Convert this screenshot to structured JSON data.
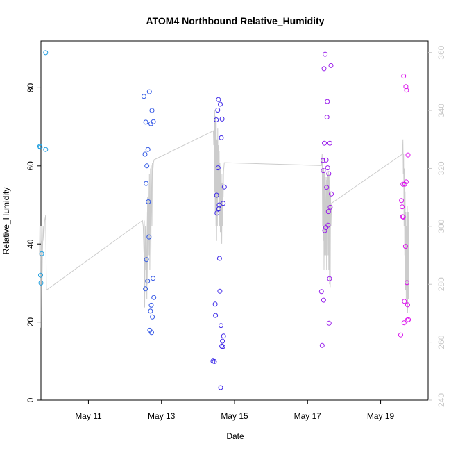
{
  "chart_data": {
    "type": "scatter",
    "title": "ATOM4 Northbound Relative_Humidity",
    "xlabel": "Date",
    "ylabel": "Relative_Humidity",
    "xlim": [
      9.7,
      20.3
    ],
    "ylim": [
      0,
      92
    ],
    "y2lim": [
      240,
      364
    ],
    "x_ticks": [
      {
        "value": 11,
        "label": "May 11"
      },
      {
        "value": 13,
        "label": "May 13"
      },
      {
        "value": 15,
        "label": "May 15"
      },
      {
        "value": 17,
        "label": "May 17"
      },
      {
        "value": 19,
        "label": "May 19"
      }
    ],
    "y_ticks": [
      0,
      20,
      40,
      60,
      80
    ],
    "y2_ticks": [
      240,
      260,
      280,
      300,
      320,
      340,
      360
    ],
    "colors": {
      "axis": "#000000",
      "secondary_axis": "#c8c8c8",
      "line": "#cccccc",
      "point_start": "#1fa0e0",
      "point_mid": "#3b2ae8",
      "point_end": "#ee10ee"
    },
    "series": [
      {
        "name": "Relative_Humidity",
        "kind": "points",
        "points": [
          [
            9.67,
            65.0
          ],
          [
            9.68,
            64.8
          ],
          [
            9.69,
            32.0
          ],
          [
            9.7,
            30.0
          ],
          [
            9.72,
            37.5
          ],
          [
            9.83,
            89.0
          ],
          [
            9.83,
            64.2
          ],
          [
            12.52,
            77.8
          ],
          [
            12.55,
            63.0
          ],
          [
            12.56,
            28.5
          ],
          [
            12.57,
            71.2
          ],
          [
            12.58,
            55.5
          ],
          [
            12.59,
            36.0
          ],
          [
            12.6,
            60.0
          ],
          [
            12.62,
            30.5
          ],
          [
            12.63,
            64.2
          ],
          [
            12.64,
            50.8
          ],
          [
            12.66,
            41.8
          ],
          [
            12.67,
            79.0
          ],
          [
            12.68,
            17.9
          ],
          [
            12.7,
            22.8
          ],
          [
            12.71,
            70.8
          ],
          [
            12.72,
            24.3
          ],
          [
            12.73,
            17.3
          ],
          [
            12.74,
            74.2
          ],
          [
            12.75,
            21.3
          ],
          [
            12.77,
            31.2
          ],
          [
            12.78,
            71.3
          ],
          [
            12.79,
            26.3
          ],
          [
            14.41,
            10.0
          ],
          [
            14.45,
            9.9
          ],
          [
            14.47,
            24.6
          ],
          [
            14.48,
            21.7
          ],
          [
            14.5,
            71.8
          ],
          [
            14.51,
            52.5
          ],
          [
            14.52,
            47.9
          ],
          [
            14.54,
            74.3
          ],
          [
            14.55,
            59.5
          ],
          [
            14.56,
            77.0
          ],
          [
            14.57,
            49.0
          ],
          [
            14.58,
            50.0
          ],
          [
            14.59,
            36.3
          ],
          [
            14.6,
            27.9
          ],
          [
            14.61,
            75.8
          ],
          [
            14.62,
            3.2
          ],
          [
            14.63,
            19.1
          ],
          [
            14.64,
            67.2
          ],
          [
            14.65,
            13.8
          ],
          [
            14.66,
            72.0
          ],
          [
            14.67,
            15.1
          ],
          [
            14.68,
            13.7
          ],
          [
            14.69,
            50.4
          ],
          [
            14.7,
            16.4
          ],
          [
            14.72,
            54.6
          ],
          [
            17.38,
            27.8
          ],
          [
            17.4,
            14.0
          ],
          [
            17.42,
            61.4
          ],
          [
            17.43,
            58.8
          ],
          [
            17.44,
            25.6
          ],
          [
            17.45,
            84.9
          ],
          [
            17.46,
            65.8
          ],
          [
            17.47,
            43.4
          ],
          [
            17.48,
            88.6
          ],
          [
            17.5,
            44.2
          ],
          [
            17.51,
            61.5
          ],
          [
            17.52,
            54.5
          ],
          [
            17.53,
            72.5
          ],
          [
            17.54,
            76.5
          ],
          [
            17.55,
            59.5
          ],
          [
            17.56,
            44.8
          ],
          [
            17.57,
            48.3
          ],
          [
            17.58,
            58.0
          ],
          [
            17.59,
            19.7
          ],
          [
            17.6,
            31.1
          ],
          [
            17.61,
            65.8
          ],
          [
            17.62,
            49.4
          ],
          [
            17.64,
            85.7
          ],
          [
            17.65,
            52.8
          ],
          [
            19.55,
            16.7
          ],
          [
            19.57,
            51.1
          ],
          [
            19.59,
            49.5
          ],
          [
            19.6,
            47.0
          ],
          [
            19.61,
            55.3
          ],
          [
            19.62,
            46.9
          ],
          [
            19.63,
            83.0
          ],
          [
            19.64,
            19.8
          ],
          [
            19.65,
            25.3
          ],
          [
            19.66,
            55.3
          ],
          [
            19.68,
            39.4
          ],
          [
            19.69,
            80.3
          ],
          [
            19.7,
            55.9
          ],
          [
            19.71,
            79.4
          ],
          [
            19.72,
            30.1
          ],
          [
            19.73,
            20.5
          ],
          [
            19.74,
            24.4
          ],
          [
            19.75,
            62.8
          ],
          [
            19.76,
            20.6
          ]
        ]
      },
      {
        "name": "secondary axis series",
        "kind": "line",
        "axis": "right",
        "points": [
          [
            9.66,
            290
          ],
          [
            9.67,
            300
          ],
          [
            9.68,
            285
          ],
          [
            9.69,
            265
          ],
          [
            9.7,
            300
          ],
          [
            9.71,
            290
          ],
          [
            9.72,
            295
          ],
          [
            9.73,
            280
          ],
          [
            9.74,
            290
          ],
          [
            9.76,
            300
          ],
          [
            9.78,
            295
          ],
          [
            9.8,
            302
          ],
          [
            9.82,
            303
          ],
          [
            9.83,
            304
          ],
          [
            9.85,
            278
          ],
          [
            12.48,
            302
          ],
          [
            12.5,
            300
          ],
          [
            12.52,
            291
          ],
          [
            12.53,
            302
          ],
          [
            12.54,
            272
          ],
          [
            12.55,
            290
          ],
          [
            12.56,
            300
          ],
          [
            12.57,
            285
          ],
          [
            12.58,
            305
          ],
          [
            12.6,
            275
          ],
          [
            12.61,
            295
          ],
          [
            12.62,
            310
          ],
          [
            12.63,
            280
          ],
          [
            12.64,
            315
          ],
          [
            12.66,
            290
          ],
          [
            12.67,
            318
          ],
          [
            12.68,
            285
          ],
          [
            12.7,
            320
          ],
          [
            12.71,
            290
          ],
          [
            12.72,
            321
          ],
          [
            12.74,
            300
          ],
          [
            12.75,
            322
          ],
          [
            12.77,
            320
          ],
          [
            12.78,
            322
          ],
          [
            12.8,
            323
          ],
          [
            14.42,
            333
          ],
          [
            14.43,
            328
          ],
          [
            14.44,
            331
          ],
          [
            14.45,
            312
          ],
          [
            14.46,
            340
          ],
          [
            14.47,
            305
          ],
          [
            14.48,
            338
          ],
          [
            14.49,
            300
          ],
          [
            14.5,
            336
          ],
          [
            14.51,
            295
          ],
          [
            14.52,
            330
          ],
          [
            14.53,
            300
          ],
          [
            14.54,
            334
          ],
          [
            14.55,
            310
          ],
          [
            14.56,
            328
          ],
          [
            14.57,
            305
          ],
          [
            14.58,
            326
          ],
          [
            14.59,
            300
          ],
          [
            14.6,
            322
          ],
          [
            14.61,
            298
          ],
          [
            14.62,
            320
          ],
          [
            14.63,
            298
          ],
          [
            14.64,
            318
          ],
          [
            14.65,
            294
          ],
          [
            14.66,
            315
          ],
          [
            14.67,
            300
          ],
          [
            14.68,
            318
          ],
          [
            14.69,
            310
          ],
          [
            14.7,
            319
          ],
          [
            14.72,
            322
          ],
          [
            17.38,
            321
          ],
          [
            17.4,
            325
          ],
          [
            17.41,
            300
          ],
          [
            17.42,
            322
          ],
          [
            17.43,
            295
          ],
          [
            17.44,
            320
          ],
          [
            17.45,
            285
          ],
          [
            17.46,
            319
          ],
          [
            17.47,
            290
          ],
          [
            17.48,
            318
          ],
          [
            17.5,
            290
          ],
          [
            17.51,
            317
          ],
          [
            17.52,
            285
          ],
          [
            17.53,
            316
          ],
          [
            17.54,
            300
          ],
          [
            17.55,
            318
          ],
          [
            17.56,
            290
          ],
          [
            17.57,
            319
          ],
          [
            17.58,
            285
          ],
          [
            17.59,
            318
          ],
          [
            17.6,
            280
          ],
          [
            17.61,
            316
          ],
          [
            17.62,
            279
          ],
          [
            17.63,
            312
          ],
          [
            17.64,
            300
          ],
          [
            17.65,
            305
          ],
          [
            17.66,
            308
          ],
          [
            19.6,
            325
          ],
          [
            19.61,
            330
          ],
          [
            19.62,
            318
          ],
          [
            19.63,
            325
          ],
          [
            19.64,
            300
          ],
          [
            19.65,
            320
          ],
          [
            19.66,
            290
          ],
          [
            19.67,
            312
          ],
          [
            19.68,
            278
          ],
          [
            19.69,
            305
          ],
          [
            19.7,
            275
          ],
          [
            19.71,
            300
          ],
          [
            19.72,
            285
          ],
          [
            19.73,
            307
          ],
          [
            19.74,
            270
          ],
          [
            19.75,
            305
          ],
          [
            19.76,
            275
          ],
          [
            19.77,
            305
          ],
          [
            19.78,
            270
          ]
        ]
      }
    ]
  }
}
